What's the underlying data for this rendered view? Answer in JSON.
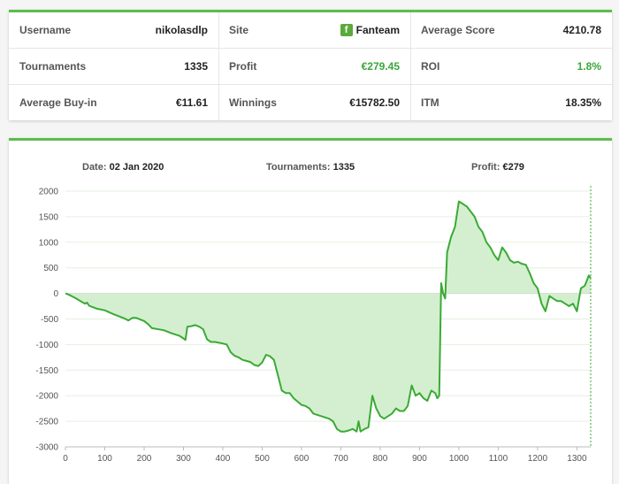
{
  "stats": {
    "username_label": "Username",
    "username_value": "nikolasdlp",
    "site_label": "Site",
    "site_value": "Fanteam",
    "site_logo_letter": "f",
    "avg_score_label": "Average Score",
    "avg_score_value": "4210.78",
    "tournaments_label": "Tournaments",
    "tournaments_value": "1335",
    "profit_label": "Profit",
    "profit_value": "€279.45",
    "roi_label": "ROI",
    "roi_value": "1.8%",
    "avg_buyin_label": "Average Buy-in",
    "avg_buyin_value": "€11.61",
    "winnings_label": "Winnings",
    "winnings_value": "€15782.50",
    "itm_label": "ITM",
    "itm_value": "18.35%"
  },
  "summary": {
    "date_label": "Date:",
    "date_value": "02 Jan 2020",
    "tournaments_label": "Tournaments:",
    "tournaments_value": "1335",
    "profit_label": "Profit:",
    "profit_value": "€279"
  },
  "colors": {
    "accent": "#5bbd4b",
    "line": "#3aaa35",
    "fill": "#d4efcf",
    "positive": "#3aa63a"
  },
  "chart_data": {
    "type": "area",
    "xlim": [
      0,
      1335
    ],
    "ylim": [
      -3000,
      2000
    ],
    "x_ticks": [
      0,
      100,
      200,
      300,
      400,
      500,
      600,
      700,
      800,
      900,
      1000,
      1100,
      1200,
      1300
    ],
    "y_ticks": [
      2000,
      1500,
      1000,
      500,
      0,
      -500,
      -1000,
      -1500,
      -2000,
      -2500,
      -3000
    ],
    "grid": true,
    "series": [
      {
        "x": [
          0,
          10,
          20,
          30,
          40,
          50,
          55,
          60,
          70,
          80,
          100,
          120,
          140,
          150,
          160,
          170,
          180,
          200,
          210,
          220,
          250,
          270,
          290,
          300,
          305,
          310,
          320,
          330,
          340,
          350,
          360,
          370,
          380,
          400,
          410,
          420,
          430,
          440,
          450,
          460,
          470,
          480,
          490,
          500,
          510,
          520,
          530,
          540,
          550,
          560,
          570,
          580,
          600,
          610,
          620,
          630,
          650,
          670,
          680,
          690,
          700,
          710,
          720,
          730,
          740,
          745,
          750,
          760,
          770,
          780,
          790,
          800,
          810,
          820,
          830,
          840,
          850,
          860,
          870,
          880,
          890,
          900,
          910,
          920,
          930,
          940,
          945,
          950,
          955,
          960,
          965,
          970,
          980,
          990,
          1000,
          1010,
          1020,
          1030,
          1040,
          1050,
          1060,
          1070,
          1080,
          1090,
          1100,
          1110,
          1120,
          1130,
          1140,
          1150,
          1160,
          1170,
          1180,
          1190,
          1200,
          1210,
          1220,
          1230,
          1240,
          1250,
          1260,
          1270,
          1280,
          1290,
          1300,
          1310,
          1320,
          1325,
          1330,
          1335
        ],
        "y": [
          0,
          -30,
          -70,
          -110,
          -160,
          -200,
          -180,
          -240,
          -270,
          -300,
          -330,
          -400,
          -460,
          -490,
          -530,
          -480,
          -480,
          -540,
          -600,
          -680,
          -720,
          -780,
          -830,
          -880,
          -910,
          -650,
          -640,
          -620,
          -650,
          -700,
          -900,
          -950,
          -950,
          -980,
          -1000,
          -1150,
          -1220,
          -1250,
          -1300,
          -1320,
          -1340,
          -1400,
          -1420,
          -1350,
          -1200,
          -1230,
          -1300,
          -1600,
          -1900,
          -1950,
          -1950,
          -2050,
          -2180,
          -2200,
          -2250,
          -2350,
          -2400,
          -2450,
          -2500,
          -2650,
          -2700,
          -2700,
          -2680,
          -2650,
          -2700,
          -2500,
          -2700,
          -2650,
          -2620,
          -2000,
          -2250,
          -2400,
          -2450,
          -2400,
          -2350,
          -2250,
          -2300,
          -2300,
          -2200,
          -1800,
          -2000,
          -1950,
          -2050,
          -2100,
          -1900,
          -1950,
          -2050,
          -2000,
          200,
          0,
          -100,
          800,
          1100,
          1300,
          1800,
          1750,
          1700,
          1600,
          1500,
          1300,
          1200,
          1000,
          900,
          750,
          650,
          900,
          800,
          650,
          600,
          620,
          580,
          560,
          400,
          200,
          100,
          -200,
          -350,
          -50,
          -100,
          -150,
          -150,
          -200,
          -250,
          -200,
          -350,
          100,
          150,
          250,
          350,
          300
        ]
      }
    ]
  }
}
